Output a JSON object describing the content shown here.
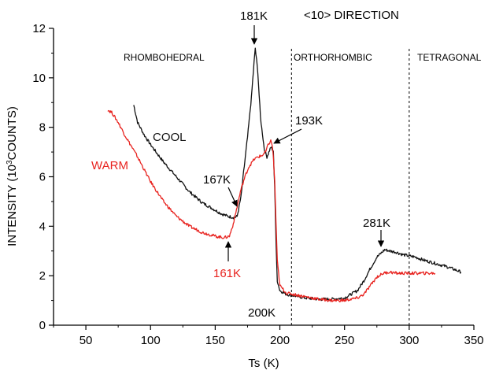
{
  "chart_data": {
    "type": "line",
    "title": "<10>  DIRECTION",
    "xlabel": "Ts (K)",
    "ylabel_main": "INTENSITY (10",
    "ylabel_sup": "3",
    "ylabel_tail": "COUNTS)",
    "xlim": [
      25,
      350
    ],
    "ylim": [
      0,
      12
    ],
    "xticks": [
      50,
      100,
      150,
      200,
      250,
      300,
      350
    ],
    "yticks": [
      0,
      2,
      4,
      6,
      8,
      10,
      12
    ],
    "grid": false,
    "colors": {
      "cool": "#111111",
      "warm": "#e8231f",
      "axis": "#000000"
    },
    "series": [
      {
        "name": "COOL",
        "color": "#111111",
        "x": [
          87,
          90,
          95,
          100,
          110,
          120,
          130,
          140,
          150,
          155,
          160,
          165,
          167,
          170,
          172,
          175,
          178,
          180,
          181,
          183,
          185,
          188,
          190,
          193,
          195,
          196,
          197,
          198,
          200,
          205,
          210,
          220,
          230,
          240,
          250,
          260,
          265,
          270,
          275,
          278,
          281,
          285,
          290,
          295,
          300,
          305,
          310,
          320,
          330,
          340
        ],
        "y": [
          8.9,
          8.2,
          7.7,
          7.3,
          6.6,
          6.0,
          5.4,
          4.95,
          4.65,
          4.5,
          4.4,
          4.35,
          4.4,
          5.2,
          6.2,
          7.6,
          9.2,
          10.6,
          11.2,
          10.2,
          8.4,
          7.1,
          6.8,
          7.2,
          7.0,
          5.6,
          3.4,
          1.8,
          1.4,
          1.25,
          1.2,
          1.1,
          1.05,
          1.05,
          1.1,
          1.4,
          1.8,
          2.3,
          2.75,
          2.9,
          3.05,
          3.0,
          2.95,
          2.85,
          2.8,
          2.75,
          2.65,
          2.5,
          2.35,
          2.15
        ]
      },
      {
        "name": "WARM",
        "color": "#e8231f",
        "x": [
          67,
          70,
          75,
          80,
          90,
          100,
          110,
          120,
          130,
          140,
          150,
          155,
          158,
          161,
          164,
          167,
          170,
          173,
          176,
          180,
          183,
          186,
          189,
          191,
          193,
          194,
          195,
          196,
          197,
          198,
          200,
          205,
          210,
          220,
          230,
          240,
          250,
          260,
          265,
          270,
          275,
          280,
          285,
          290,
          300,
          310,
          320
        ],
        "y": [
          8.7,
          8.6,
          8.2,
          7.7,
          6.8,
          5.8,
          5.0,
          4.4,
          4.0,
          3.75,
          3.6,
          3.55,
          3.55,
          3.6,
          4.1,
          4.8,
          5.5,
          6.0,
          6.4,
          6.7,
          6.8,
          6.85,
          7.0,
          7.3,
          7.45,
          7.3,
          6.8,
          5.8,
          4.2,
          2.6,
          1.6,
          1.3,
          1.25,
          1.15,
          1.05,
          1.0,
          1.0,
          1.1,
          1.25,
          1.6,
          1.95,
          2.1,
          2.15,
          2.1,
          2.1,
          2.1,
          2.1
        ]
      }
    ],
    "vlines": [
      209,
      300
    ],
    "phases": [
      "RHOMBOHEDRAL",
      "ORTHORHOMBIC",
      "TETRAGONAL"
    ],
    "annotations": {
      "t181": "181K",
      "t193": "193K",
      "t167": "167K",
      "t161": "161K",
      "t200": "200K",
      "t281": "281K",
      "cool": "COOL",
      "warm": "WARM"
    }
  }
}
